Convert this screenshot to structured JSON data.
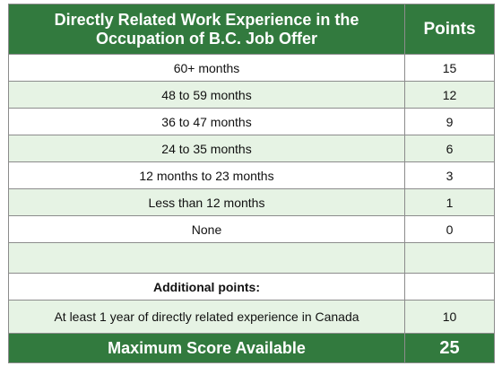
{
  "table": {
    "header": {
      "criteria": "Directly Related Work Experience in the Occupation of B.C. Job Offer",
      "points": "Points"
    },
    "rows": [
      {
        "label": "60+ months",
        "points": "15"
      },
      {
        "label": "48 to 59 months",
        "points": "12"
      },
      {
        "label": "36 to 47 months",
        "points": "9"
      },
      {
        "label": "24 to 35 months",
        "points": "6"
      },
      {
        "label": "12 months to 23 months",
        "points": "3"
      },
      {
        "label": "Less than 12 months",
        "points": "1"
      },
      {
        "label": "None",
        "points": "0"
      }
    ],
    "additional_heading": "Additional points:",
    "additional": {
      "label": "At least 1 year of directly related experience in Canada",
      "points": "10"
    },
    "footer": {
      "label": "Maximum Score Available",
      "points": "25"
    }
  }
}
